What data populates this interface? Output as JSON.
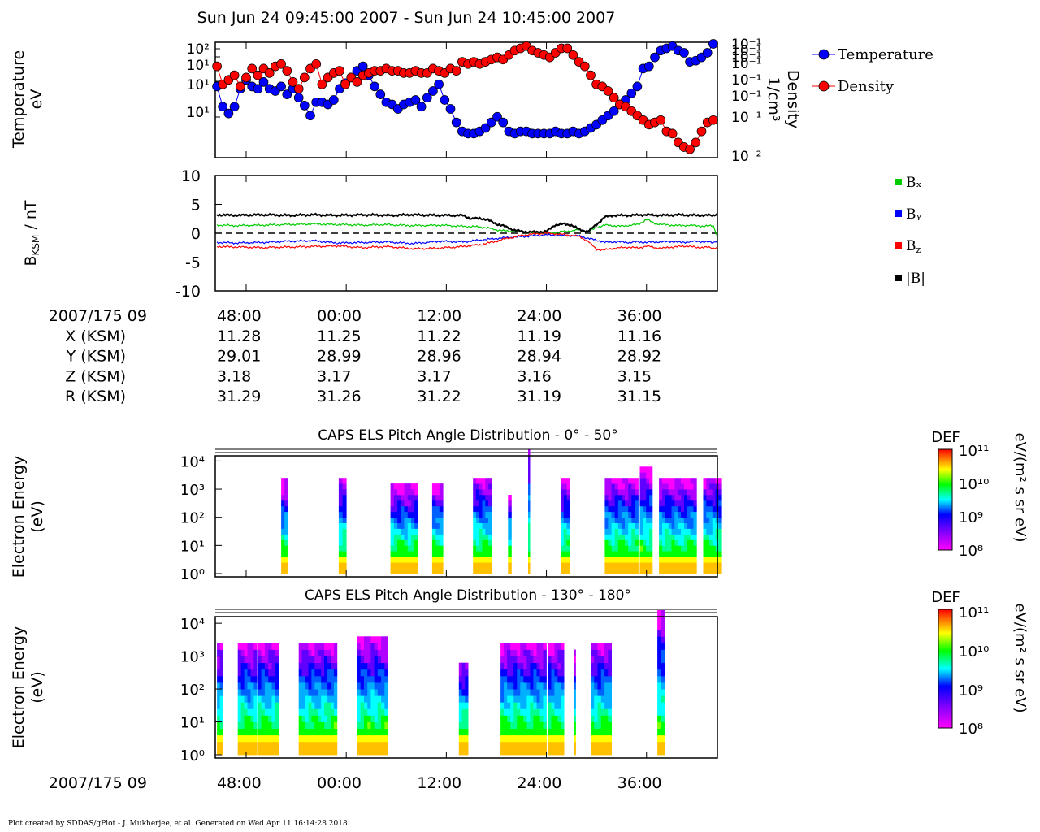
{
  "title": "Sun Jun 24 09:45:00 2007 - Sun Jun 24 10:45:00 2007",
  "footer": "Plot created by SDDAS/gPlot - J. Mukherjee, et al.  Generated on Wed Apr 11 16:14:28 2018.",
  "colors": {
    "temperature": "#0000ff",
    "density": "#ff0000",
    "bx": "#00cc00",
    "by": "#0000ff",
    "bz": "#ff0000",
    "btot": "#000000"
  },
  "time_axis": {
    "label": "2007/175 09",
    "ticks": [
      "48:00",
      "00:00",
      "12:00",
      "24:00",
      "36:00"
    ],
    "tick_minutes": [
      48,
      60,
      72,
      84,
      96
    ],
    "range_minutes": [
      44.3,
      104.5
    ]
  },
  "ephemeris": {
    "rows": [
      {
        "label": "X (KSM)",
        "values": [
          "11.28",
          "11.25",
          "11.22",
          "11.19",
          "11.16"
        ]
      },
      {
        "label": "Y (KSM)",
        "values": [
          "29.01",
          "28.99",
          "28.96",
          "28.94",
          "28.92"
        ]
      },
      {
        "label": "Z (KSM)",
        "values": [
          "3.18",
          "3.17",
          "3.17",
          "3.16",
          "3.15"
        ]
      },
      {
        "label": "R (KSM)",
        "values": [
          "31.29",
          "31.26",
          "31.22",
          "31.19",
          "31.15"
        ]
      }
    ]
  },
  "chart_data": [
    {
      "type": "scatter",
      "id": "plasma-moments",
      "ylabel": [
        "Temperature",
        "eV"
      ],
      "ylabel_right": [
        "Density",
        "1/cm³"
      ],
      "left_ticks": [
        "10²",
        "10¹",
        "10¹",
        "10¹"
      ],
      "right_ticks": [
        "10⁻¹",
        "10⁻¹",
        "10⁻¹",
        "10⁻¹",
        "10⁻¹",
        "10⁻¹",
        "10⁻¹",
        "10⁻²"
      ],
      "legend_placement": "right",
      "series": [
        {
          "name": "Temperature",
          "color": "#0000ff",
          "t": [
            44.5,
            45.2,
            45.9,
            46.6,
            47.3,
            48.0,
            48.7,
            49.4,
            50.1,
            50.8,
            51.5,
            52.2,
            52.9,
            53.6,
            54.3,
            55.0,
            55.7,
            56.4,
            57.1,
            57.8,
            58.5,
            59.2,
            59.9,
            60.6,
            61.3,
            62.0,
            62.7,
            63.4,
            64.1,
            64.8,
            65.5,
            66.2,
            66.9,
            67.6,
            68.3,
            69.0,
            69.7,
            70.4,
            71.1,
            71.8,
            72.5,
            73.2,
            73.9,
            74.6,
            75.3,
            76.0,
            76.7,
            77.4,
            78.1,
            78.8,
            79.5,
            80.2,
            80.9,
            81.6,
            82.3,
            83.0,
            83.7,
            84.4,
            85.1,
            85.8,
            86.5,
            87.2,
            87.9,
            88.6,
            89.3,
            90.0,
            90.7,
            91.4,
            92.1,
            92.8,
            93.5,
            94.2,
            94.9,
            95.6,
            96.3,
            97.0,
            97.7,
            98.4,
            99.1,
            99.8,
            100.5,
            101.2,
            101.9,
            102.6,
            103.3,
            104.0
          ],
          "v": [
            0.62,
            0.44,
            0.38,
            0.44,
            0.6,
            0.68,
            0.62,
            0.6,
            0.66,
            0.6,
            0.58,
            0.62,
            0.55,
            0.6,
            0.52,
            0.45,
            0.36,
            0.48,
            0.48,
            0.46,
            0.5,
            0.6,
            0.65,
            0.7,
            0.76,
            0.8,
            0.72,
            0.62,
            0.55,
            0.48,
            0.46,
            0.42,
            0.46,
            0.48,
            0.5,
            0.44,
            0.52,
            0.58,
            0.64,
            0.5,
            0.42,
            0.3,
            0.22,
            0.2,
            0.2,
            0.22,
            0.25,
            0.3,
            0.35,
            0.3,
            0.22,
            0.2,
            0.22,
            0.22,
            0.2,
            0.2,
            0.2,
            0.2,
            0.22,
            0.2,
            0.2,
            0.22,
            0.2,
            0.22,
            0.25,
            0.28,
            0.32,
            0.36,
            0.4,
            0.46,
            0.5,
            0.56,
            0.62,
            0.78,
            0.8,
            0.88,
            0.94,
            0.96,
            0.98,
            0.94,
            0.92,
            0.84,
            0.85,
            0.88,
            0.92,
            1.0
          ]
        },
        {
          "name": "Density",
          "color": "#ff0000",
          "t": [
            44.5,
            45.2,
            45.9,
            46.6,
            47.3,
            48.0,
            48.7,
            49.4,
            50.1,
            50.8,
            51.5,
            52.2,
            52.9,
            53.6,
            54.3,
            55.0,
            55.7,
            56.4,
            57.1,
            57.8,
            58.5,
            59.2,
            59.9,
            60.6,
            61.3,
            62.0,
            62.7,
            63.4,
            64.1,
            64.8,
            65.5,
            66.2,
            66.9,
            67.6,
            68.3,
            69.0,
            69.7,
            70.4,
            71.1,
            71.8,
            72.5,
            73.2,
            73.9,
            74.6,
            75.3,
            76.0,
            76.7,
            77.4,
            78.1,
            78.8,
            79.5,
            80.2,
            80.9,
            81.6,
            82.3,
            83.0,
            83.7,
            84.4,
            85.1,
            85.8,
            86.5,
            87.2,
            87.9,
            88.6,
            89.3,
            90.0,
            90.7,
            91.4,
            92.1,
            92.8,
            93.5,
            94.2,
            94.9,
            95.6,
            96.3,
            97.0,
            97.7,
            98.4,
            99.1,
            99.8,
            100.5,
            101.2,
            101.9,
            102.6,
            103.3,
            104.0
          ],
          "v": [
            0.8,
            0.64,
            0.68,
            0.72,
            0.62,
            0.7,
            0.78,
            0.72,
            0.78,
            0.74,
            0.8,
            0.82,
            0.76,
            0.66,
            0.6,
            0.7,
            0.78,
            0.82,
            0.64,
            0.7,
            0.74,
            0.76,
            0.64,
            0.7,
            0.66,
            0.72,
            0.74,
            0.76,
            0.76,
            0.78,
            0.76,
            0.76,
            0.74,
            0.74,
            0.76,
            0.74,
            0.74,
            0.78,
            0.76,
            0.74,
            0.78,
            0.76,
            0.84,
            0.82,
            0.84,
            0.82,
            0.84,
            0.86,
            0.88,
            0.86,
            0.9,
            0.94,
            0.96,
            0.98,
            0.94,
            0.92,
            0.9,
            0.88,
            0.92,
            0.96,
            0.96,
            0.9,
            0.84,
            0.8,
            0.72,
            0.64,
            0.62,
            0.58,
            0.52,
            0.46,
            0.44,
            0.4,
            0.36,
            0.32,
            0.28,
            0.3,
            0.32,
            0.22,
            0.2,
            0.12,
            0.08,
            0.06,
            0.12,
            0.22,
            0.3,
            0.32
          ]
        }
      ]
    },
    {
      "type": "line",
      "id": "magnetic-field",
      "ylabel": "B_KSM / nT",
      "ylim": [
        -10,
        10
      ],
      "yticks": [
        -10,
        -5,
        0,
        5,
        10
      ],
      "legend_placement": "right",
      "series": [
        {
          "name": "Bₓ",
          "color": "#00cc00",
          "t": [
            44.5,
            47,
            50,
            53,
            56,
            59,
            62,
            65,
            68,
            71,
            74,
            76,
            77,
            78,
            79,
            80,
            81,
            82,
            83,
            84,
            85,
            86,
            87,
            88,
            89,
            90,
            91,
            92,
            93,
            94,
            95,
            96,
            97,
            98,
            99,
            100,
            101,
            102,
            103,
            104,
            104.5
          ],
          "v": [
            1.4,
            1.3,
            1.4,
            1.5,
            1.6,
            1.5,
            1.4,
            1.5,
            1.3,
            1.4,
            1.2,
            1.1,
            0.9,
            0.6,
            0.4,
            0.3,
            0.3,
            0.1,
            0.0,
            0.0,
            0.1,
            0.3,
            0.4,
            0.6,
            0.2,
            1.0,
            1.4,
            1.3,
            1.2,
            1.4,
            1.5,
            2.4,
            1.7,
            1.5,
            1.4,
            1.3,
            1.4,
            1.3,
            1.2,
            1.3,
            -0.5
          ]
        },
        {
          "name": "Bᵧ",
          "color": "#0000ff",
          "t": [
            44.5,
            47,
            50,
            53,
            56,
            59,
            62,
            65,
            68,
            71,
            74,
            76,
            78,
            80,
            82,
            84,
            86,
            88,
            89,
            90,
            91,
            92,
            93,
            94,
            95,
            96,
            97,
            98,
            99,
            100,
            101,
            102,
            103,
            104,
            104.5
          ],
          "v": [
            -1.6,
            -1.7,
            -1.6,
            -1.4,
            -1.3,
            -1.7,
            -1.6,
            -1.5,
            -1.8,
            -1.4,
            -1.5,
            -1.2,
            -0.9,
            -0.7,
            -0.5,
            -0.3,
            -0.4,
            -0.5,
            -0.9,
            -1.2,
            -1.6,
            -1.5,
            -1.5,
            -1.6,
            -1.5,
            -1.6,
            -1.5,
            -1.5,
            -1.4,
            -1.6,
            -1.5,
            -1.4,
            -1.5,
            -1.6,
            -1.2
          ]
        },
        {
          "name": "B_z",
          "color": "#ff0000",
          "t": [
            44.5,
            47,
            50,
            53,
            56,
            59,
            62,
            65,
            68,
            71,
            74,
            76,
            77,
            78,
            79,
            80,
            81,
            82,
            84,
            86,
            88,
            89,
            90,
            91,
            92,
            93,
            94,
            95,
            96,
            97,
            98,
            99,
            100,
            101,
            102,
            103,
            104,
            104.5
          ],
          "v": [
            -2.3,
            -2.4,
            -2.5,
            -2.4,
            -2.3,
            -2.2,
            -2.5,
            -2.3,
            -2.7,
            -2.6,
            -2.3,
            -2.0,
            -1.7,
            -1.4,
            -1.0,
            -0.7,
            -0.4,
            -0.2,
            0.0,
            -0.2,
            -0.6,
            -1.4,
            -2.8,
            -2.9,
            -2.6,
            -2.5,
            -2.4,
            -2.6,
            -2.2,
            -2.5,
            -2.6,
            -2.4,
            -2.3,
            -2.2,
            -2.5,
            -2.4,
            -2.6,
            -2.4
          ]
        },
        {
          "name": "|B|",
          "color": "#000000",
          "t": [
            44.5,
            47,
            50,
            53,
            56,
            59,
            62,
            65,
            68,
            71,
            74,
            75,
            76,
            77,
            78,
            79,
            80,
            81,
            82,
            83,
            84,
            85,
            86,
            87,
            88,
            89,
            90,
            91,
            92,
            94,
            96,
            98,
            100,
            102,
            104,
            104.5
          ],
          "v": [
            3.2,
            3.1,
            3.2,
            3.1,
            3.2,
            3.1,
            3.2,
            3.1,
            3.2,
            3.1,
            3.1,
            2.5,
            2.6,
            2.3,
            1.6,
            1.2,
            0.6,
            0.3,
            0.2,
            0.2,
            0.3,
            1.4,
            1.6,
            1.4,
            0.6,
            0.3,
            1.5,
            2.8,
            3.1,
            3.1,
            3.2,
            3.1,
            3.2,
            3.1,
            3.1,
            3.4
          ]
        }
      ]
    },
    {
      "type": "heatmap",
      "id": "els-pad-0-50",
      "title": "CAPS ELS Pitch Angle Distribution - 0° - 50°",
      "ylabel": [
        "Electron Energy",
        "(eV)"
      ],
      "yticks": [
        "10⁰",
        "10¹",
        "10²",
        "10³",
        "10⁴"
      ],
      "colorbar": {
        "label": "DEF",
        "units": "eV/(m² s sr eV)",
        "ticks": [
          "10¹¹",
          "10¹⁰",
          "10⁹",
          "10⁸"
        ]
      },
      "bursts": [
        [
          52.2,
          53.0,
          3.2
        ],
        [
          59.1,
          60.0,
          3.3
        ],
        [
          65.3,
          68.6,
          3.0
        ],
        [
          70.3,
          71.6,
          3.1
        ],
        [
          75.2,
          77.4,
          3.4
        ],
        [
          79.4,
          79.8,
          2.8
        ],
        [
          81.8,
          82.0,
          4.6
        ],
        [
          85.7,
          86.8,
          3.2
        ],
        [
          91.0,
          95.0,
          3.3
        ],
        [
          95.2,
          96.7,
          3.6
        ],
        [
          97.5,
          102.0,
          3.2
        ],
        [
          102.8,
          105.0,
          3.4
        ]
      ]
    },
    {
      "type": "heatmap",
      "id": "els-pad-130-180",
      "title": "CAPS ELS Pitch Angle Distribution - 130° - 180°",
      "ylabel": [
        "Electron Energy",
        "(eV)"
      ],
      "yticks": [
        "10⁰",
        "10¹",
        "10²",
        "10³",
        "10⁴"
      ],
      "colorbar": {
        "label": "DEF",
        "units": "eV/(m² s sr eV)",
        "ticks": [
          "10¹¹",
          "10¹⁰",
          "10⁹",
          "10⁸"
        ]
      },
      "bursts": [
        [
          44.5,
          45.2,
          3.3
        ],
        [
          47.0,
          49.3,
          3.3
        ],
        [
          49.4,
          51.9,
          3.3
        ],
        [
          54.3,
          58.9,
          3.4
        ],
        [
          61.3,
          65.0,
          3.5
        ],
        [
          73.5,
          74.6,
          2.8
        ],
        [
          78.5,
          84.0,
          3.3
        ],
        [
          84.2,
          86.1,
          3.3
        ],
        [
          87.3,
          87.5,
          3.0
        ],
        [
          89.3,
          91.8,
          3.4
        ],
        [
          97.3,
          98.2,
          4.3
        ]
      ]
    }
  ],
  "legend_moments": [
    "Temperature",
    "Density"
  ],
  "legend_field": [
    "Bₓ",
    "Bᵧ",
    "B_z",
    "|B|"
  ]
}
